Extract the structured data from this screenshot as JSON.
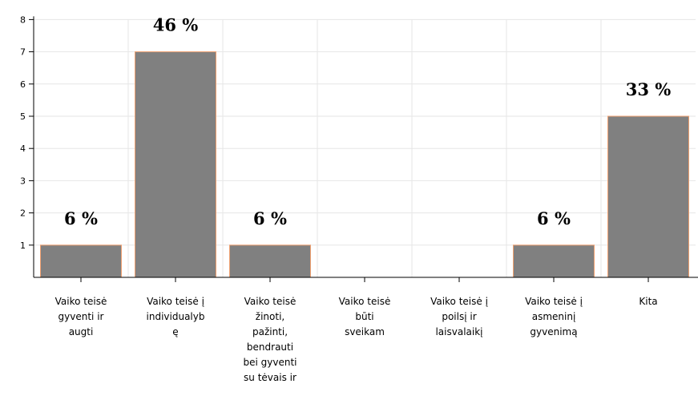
{
  "chart_data": {
    "type": "bar",
    "categories": [
      [
        "Vaiko teisė",
        "gyventi ir",
        "augti"
      ],
      [
        "Vaiko teisė į",
        "individualyb",
        "ę"
      ],
      [
        "Vaiko teisė",
        "žinoti,",
        "pažinti,",
        "bendrauti",
        "bei gyventi",
        "su tėvais ir"
      ],
      [
        "Vaiko teisė",
        "būti",
        "sveikam"
      ],
      [
        "Vaiko teisė į",
        "poilsį ir",
        "laisvalaikį"
      ],
      [
        "Vaiko teisė į",
        "asmeninį",
        "gyvenimą"
      ],
      [
        "Kita"
      ]
    ],
    "values": [
      1,
      7,
      1,
      0,
      0,
      1,
      5
    ],
    "data_labels": [
      "6 %",
      "46 %",
      "6 %",
      "",
      "",
      "6 %",
      "33 %"
    ],
    "ylim": [
      0,
      8
    ],
    "yticks": [
      1,
      2,
      3,
      4,
      5,
      6,
      7,
      8
    ],
    "grid": true,
    "colors": {
      "bar_fill": "#808080",
      "bar_edge": "#f0a070",
      "grid": "#e6e6e6",
      "axis": "#000000"
    }
  }
}
